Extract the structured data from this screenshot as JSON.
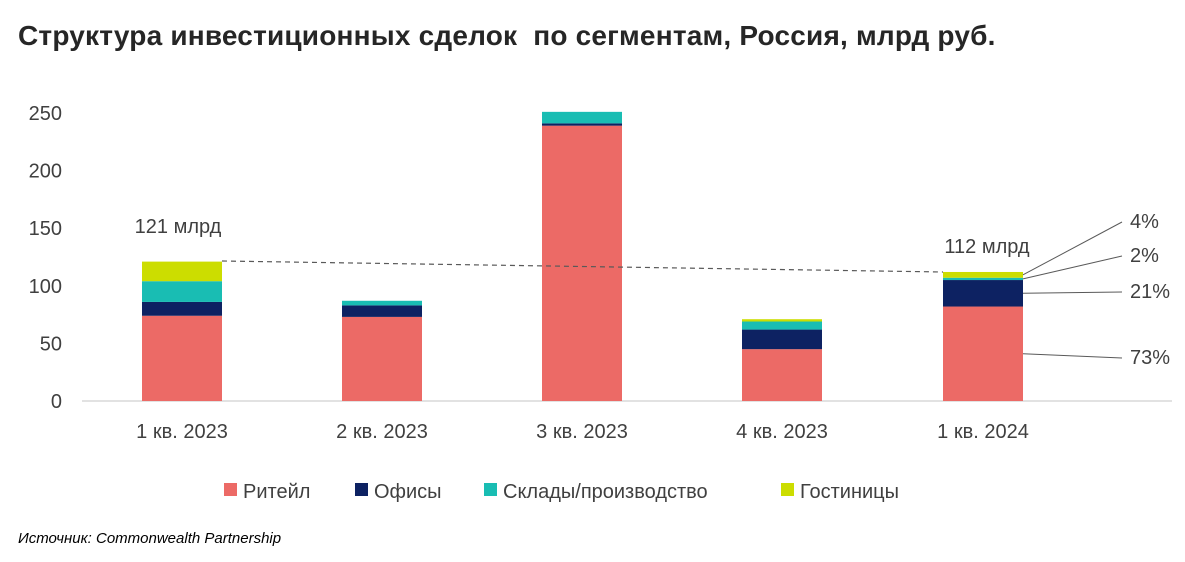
{
  "chart_data": {
    "type": "bar",
    "stacked": true,
    "title": "Структура инвестиционных сделок  по сегментам, Россия, млрд руб.",
    "categories": [
      "1 кв. 2023",
      "2 кв. 2023",
      "3 кв. 2023",
      "4 кв. 2023",
      "1 кв. 2024"
    ],
    "series": [
      {
        "name": "Ритейл",
        "color": "#EC6A66",
        "values": [
          74,
          73,
          239,
          45,
          82
        ]
      },
      {
        "name": "Офисы",
        "color": "#0D2262",
        "values": [
          12,
          10,
          2,
          17,
          23
        ]
      },
      {
        "name": "Склады/производство",
        "color": "#19BDB3",
        "values": [
          18,
          4,
          10,
          7,
          2
        ]
      },
      {
        "name": "Гостиницы",
        "color": "#CCDD00",
        "values": [
          17,
          0,
          0,
          2,
          5
        ]
      }
    ],
    "ylim": [
      0,
      250
    ],
    "yticks": [
      "0",
      "50",
      "100",
      "150",
      "200",
      "250"
    ],
    "annotations": {
      "first_total": "121 млрд",
      "last_total": "112 млрд",
      "last_shares": [
        "4%",
        "2%",
        "21%",
        "73%"
      ]
    },
    "legend_position": "bottom"
  },
  "source": "Источник: Commonwealth Partnership"
}
